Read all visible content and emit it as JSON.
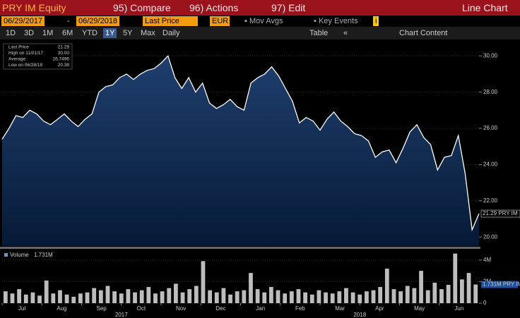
{
  "header": {
    "security": "PRY IM Equity",
    "menu": [
      "95) Compare",
      "96) Actions",
      "97) Edit"
    ],
    "view": "Line Chart"
  },
  "controls": {
    "start_date": "06/29/2017",
    "end_date": "06/29/2018",
    "field": "Last Price",
    "currency": "EUR",
    "options": [
      "Mov Avgs",
      "Key Events"
    ],
    "periods": [
      "1D",
      "3D",
      "1M",
      "6M",
      "YTD",
      "1Y",
      "5Y",
      "Max"
    ],
    "active_period": "1Y",
    "frequency": "Daily",
    "table": "Table",
    "chart_content": "Chart Content"
  },
  "x_axis": {
    "months": [
      "Jul",
      "Aug",
      "Sep",
      "Oct",
      "Nov",
      "Dec",
      "Jan",
      "Feb",
      "Mar",
      "Apr",
      "May",
      "Jun"
    ],
    "years": [
      "2017",
      "2018"
    ]
  },
  "chart_data": [
    {
      "type": "area",
      "stats": [
        {
          "label": "Last Price",
          "value": "21.29"
        },
        {
          "label": "High on 11/01/17",
          "value": "30.00"
        },
        {
          "label": "Average",
          "value": "26.7496"
        },
        {
          "label": "Low on 06/28/18",
          "value": "20.38"
        }
      ],
      "price_tag": "21.29 PRY IM",
      "series": [
        {
          "name": "PRY IM",
          "color": "#ffffff",
          "values": [
            25.4,
            26.0,
            26.7,
            26.6,
            27.0,
            26.8,
            26.4,
            26.2,
            26.5,
            26.8,
            26.4,
            26.1,
            26.5,
            26.8,
            28.0,
            28.3,
            28.4,
            28.8,
            29.0,
            28.7,
            29.0,
            29.2,
            29.3,
            29.6,
            30.0,
            28.8,
            28.2,
            28.8,
            28.0,
            28.5,
            27.4,
            27.1,
            27.3,
            27.6,
            27.2,
            27.0,
            28.5,
            28.8,
            29.0,
            29.4,
            28.9,
            28.2,
            27.5,
            26.3,
            26.6,
            26.4,
            25.9,
            26.5,
            26.9,
            26.4,
            26.1,
            25.7,
            25.6,
            25.3,
            24.4,
            24.7,
            24.8,
            24.1,
            24.9,
            25.8,
            26.2,
            25.5,
            25.1,
            23.7,
            24.4,
            24.5,
            25.6,
            23.5,
            20.4,
            21.29
          ]
        }
      ],
      "ylim": [
        19.5,
        30.75
      ],
      "yticks": [
        {
          "value": 20,
          "label": "20.00"
        },
        {
          "value": 22,
          "label": "22.00"
        },
        {
          "value": 24,
          "label": "24.00"
        },
        {
          "value": 26,
          "label": "26.00"
        },
        {
          "value": 28,
          "label": "28.00"
        },
        {
          "value": 30,
          "label": "30.00"
        }
      ]
    },
    {
      "type": "bar",
      "legend_value": "1.731M",
      "price_tag": "1.731M PRY IM",
      "series": [
        {
          "name": "Volume",
          "color": "#bdbdbd",
          "values": [
            1.1,
            0.9,
            1.3,
            0.8,
            1.0,
            0.7,
            2.1,
            0.9,
            1.2,
            0.8,
            0.6,
            0.9,
            1.0,
            1.4,
            1.2,
            1.6,
            1.1,
            0.9,
            1.3,
            1.0,
            1.2,
            1.5,
            0.9,
            1.1,
            1.4,
            1.8,
            1.0,
            1.3,
            1.6,
            3.9,
            1.2,
            1.0,
            1.4,
            0.8,
            1.1,
            1.2,
            2.8,
            1.3,
            1.0,
            1.5,
            1.2,
            0.9,
            1.1,
            1.3,
            1.0,
            0.8,
            1.2,
            1.0,
            0.9,
            1.1,
            1.4,
            1.0,
            0.8,
            1.1,
            1.2,
            1.5,
            3.2,
            1.3,
            1.1,
            1.6,
            1.4,
            3.0,
            1.2,
            1.9,
            1.3,
            1.7,
            4.6,
            2.2,
            2.8,
            1.731
          ]
        }
      ],
      "ylim": [
        0,
        4.9
      ],
      "yticks": [
        0,
        {
          "value": 2,
          "label": "2M"
        },
        {
          "value": 4,
          "label": "4M"
        }
      ]
    }
  ]
}
